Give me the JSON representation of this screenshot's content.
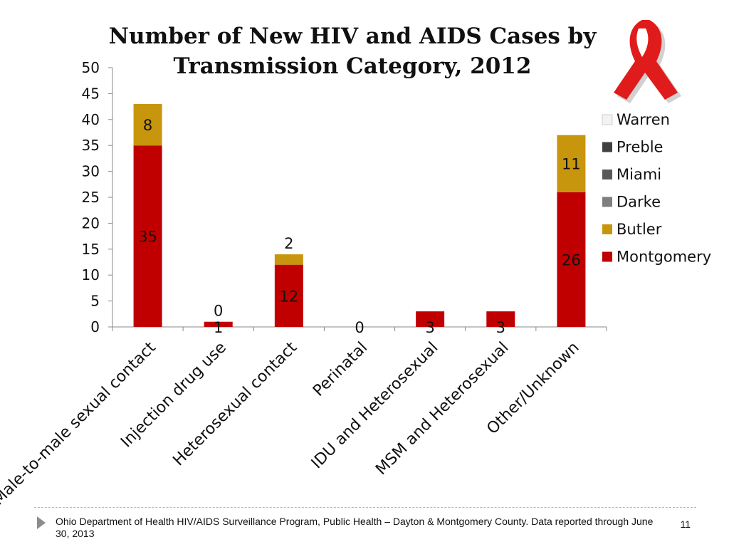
{
  "chart_data": {
    "type": "bar",
    "stacked": true,
    "title_lines": [
      "Number of New HIV and AIDS Cases by",
      "Transmission Category, 2012"
    ],
    "categories": [
      "Male-to-male sexual contact",
      "Injection drug use",
      "Heterosexual contact",
      "Perinatal",
      "IDU and Heterosexual",
      "MSM and Heterosexual",
      "Other/Unknown"
    ],
    "series": [
      {
        "name": "Montgomery",
        "color": "#c00000",
        "values": [
          35,
          1,
          12,
          0,
          3,
          3,
          26
        ]
      },
      {
        "name": "Butler",
        "color": "#c8960c",
        "values": [
          8,
          0,
          2,
          0,
          0,
          0,
          11
        ]
      },
      {
        "name": "Darke",
        "color": "#7f7f7f",
        "values": [
          0,
          0,
          0,
          0,
          0,
          0,
          0
        ]
      },
      {
        "name": "Miami",
        "color": "#595959",
        "values": [
          0,
          0,
          0,
          0,
          0,
          0,
          0
        ]
      },
      {
        "name": "Preble",
        "color": "#404040",
        "values": [
          0,
          0,
          0,
          0,
          0,
          0,
          0
        ]
      },
      {
        "name": "Warren",
        "color": "#f2f2f2",
        "values": [
          0,
          0,
          0,
          0,
          0,
          0,
          0
        ]
      }
    ],
    "data_labels": [
      {
        "category": "Male-to-male sexual contact",
        "series": "Montgomery",
        "text": "35"
      },
      {
        "category": "Male-to-male sexual contact",
        "series": "Butler",
        "text": "8"
      },
      {
        "category": "Injection drug use",
        "series": "Montgomery",
        "text": "1"
      },
      {
        "category": "Injection drug use",
        "series": "Butler",
        "text": "0"
      },
      {
        "category": "Heterosexual contact",
        "series": "Montgomery",
        "text": "12"
      },
      {
        "category": "Heterosexual contact",
        "series": "Butler",
        "text": "2"
      },
      {
        "category": "Perinatal",
        "series": "Montgomery",
        "text": "0"
      },
      {
        "category": "IDU and Heterosexual",
        "series": "Montgomery",
        "text": "3"
      },
      {
        "category": "MSM and Heterosexual",
        "series": "Montgomery",
        "text": "3"
      },
      {
        "category": "Other/Unknown",
        "series": "Montgomery",
        "text": "26"
      },
      {
        "category": "Other/Unknown",
        "series": "Butler",
        "text": "11"
      }
    ],
    "legend_order": [
      "Warren",
      "Preble",
      "Miami",
      "Darke",
      "Butler",
      "Montgomery"
    ],
    "legend_position": "right",
    "ylim": [
      0,
      50
    ],
    "yticks": [
      0,
      5,
      10,
      15,
      20,
      25,
      30,
      35,
      40,
      45,
      50
    ],
    "xlabel": "",
    "ylabel": "",
    "grid": false
  },
  "decoration": {
    "icon": "awareness-ribbon-icon",
    "color": "#e01b1b"
  },
  "footer": {
    "source": "Ohio Department of Health HIV/AIDS Surveillance Program, Public Health – Dayton & Montgomery County.  Data reported through June 30, 2013",
    "page_number": "11"
  }
}
